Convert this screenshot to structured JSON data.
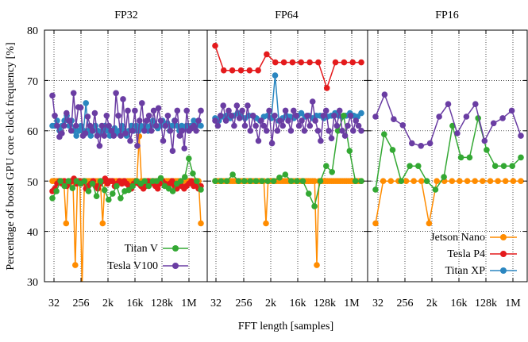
{
  "chart_data": {
    "type": "line",
    "ylabel": "Percentage of boost GPU core clock frequency [%]",
    "xlabel": "FFT length [samples]",
    "ylim": [
      30,
      80
    ],
    "y_ticks": [
      "30",
      "40",
      "50",
      "60",
      "70",
      "80"
    ],
    "x_ticks": [
      "32",
      "256",
      "2k",
      "16k",
      "128k",
      "1M"
    ],
    "grid": true,
    "colors": {
      "Jetson Nano": "#ff8c00",
      "Tesla P4": "#e41a1c",
      "Titan XP": "#2a86c0",
      "Titan V": "#33a833",
      "Tesla V100": "#6a3da3"
    },
    "panels": [
      {
        "title": "FP32",
        "legend": [
          "Titan V",
          "Tesla V100"
        ],
        "legend_position": "bottom-right",
        "series": [
          {
            "name": "Jetson Nano",
            "values": [
              50,
              50,
              50,
              50,
              50,
              50,
              41.6,
              50,
              50,
              50,
              33.3,
              50,
              50,
              29,
              50,
              50,
              50,
              50,
              50,
              50,
              50,
              50,
              41.6,
              50,
              50,
              50,
              50,
              50,
              50,
              50,
              50,
              50,
              50,
              50,
              50,
              50,
              50,
              50,
              58.9,
              50,
              50,
              50,
              50,
              50,
              50,
              50,
              50,
              50,
              50,
              50,
              50,
              50,
              50,
              50,
              50,
              50,
              50,
              50,
              50,
              50,
              50,
              50,
              50,
              50,
              50,
              41.6
            ]
          },
          {
            "name": "Tesla P4",
            "values": [
              48,
              48.5,
              49.5,
              50,
              49.5,
              50,
              49,
              49.5,
              50,
              50.5,
              49.5,
              50,
              49.5,
              50,
              48.5,
              49,
              49.5,
              50,
              49,
              48.5,
              49.5,
              50,
              50.5,
              49.5,
              50,
              50,
              49,
              49.5,
              50,
              49.5,
              50,
              49.5,
              49,
              48.5,
              49.5,
              50,
              49.5,
              49,
              48.5,
              49,
              50,
              49.5,
              50,
              49,
              48.5,
              49.5,
              50,
              49.5,
              49,
              49.5,
              50,
              49,
              48.5,
              49.5,
              49,
              48.5,
              49,
              49.5,
              50,
              49,
              49.5,
              48.5,
              49
            ]
          },
          {
            "name": "Titan XP",
            "values": [
              61,
              61,
              62,
              60,
              61,
              62,
              63,
              61,
              62,
              60,
              59,
              60,
              61,
              60,
              65.5,
              60,
              59,
              60,
              61,
              60,
              59.5,
              60,
              61,
              60,
              59,
              60,
              60.5,
              59.5,
              60,
              61,
              60,
              59,
              60,
              61,
              60,
              61,
              60,
              61,
              60.5,
              61,
              60,
              61,
              62,
              61,
              60.5,
              61,
              62,
              61,
              61.5,
              60,
              61,
              62,
              61,
              60,
              61,
              60.5,
              61,
              60,
              61,
              62,
              61,
              62,
              61
            ]
          },
          {
            "name": "Titan V",
            "values": [
              46.6,
              48,
              50,
              49,
              50,
              48.6,
              50,
              49.5,
              50,
              48,
              49.5,
              47,
              50,
              48.2,
              46.3,
              47.5,
              49,
              46.6,
              48,
              48.2,
              49,
              50,
              49.5,
              50,
              49,
              50,
              50,
              50.6,
              49,
              48.5,
              48,
              49.5,
              50,
              50.8,
              54.5,
              51.5,
              50,
              48.3
            ]
          },
          {
            "name": "Tesla V100",
            "values": [
              67,
              63,
              61,
              58.8,
              59.5,
              61,
              63.5,
              62,
              60,
              67.5,
              61,
              64.7,
              64.6,
              59,
              59.5,
              62.8,
              61,
              60,
              63.5,
              59,
              57,
              61,
              59,
              63,
              61,
              60,
              59,
              67.5,
              63,
              59,
              66.3,
              59.5,
              64,
              58,
              60,
              64,
              57,
              62,
              65.5,
              60,
              62,
              63,
              60,
              64,
              61,
              64.5,
              62,
              58,
              61,
              63,
              60,
              56,
              62,
              64,
              59,
              60,
              56.5,
              64,
              60,
              60.5,
              61,
              60,
              62,
              64
            ]
          }
        ]
      },
      {
        "title": "FP64",
        "legend": [],
        "legend_position": "none",
        "series": [
          {
            "name": "Jetson Nano",
            "values": [
              50,
              50,
              50,
              50,
              50,
              50,
              50,
              50,
              50,
              50,
              50,
              50,
              50,
              50,
              50,
              50,
              50,
              50,
              50,
              50,
              50,
              50,
              50,
              50,
              41.6,
              50,
              50,
              50,
              50,
              50,
              50,
              50,
              50,
              50,
              50,
              50,
              50,
              50,
              50,
              50,
              50,
              50,
              50,
              50,
              50,
              50,
              50,
              50,
              33.3,
              50,
              50,
              50,
              50,
              50,
              50,
              50,
              50,
              50,
              50,
              50,
              50,
              50,
              50,
              50,
              50,
              50,
              50,
              50,
              50,
              50
            ]
          },
          {
            "name": "Tesla P4",
            "values": [
              76.9,
              72,
              72,
              72,
              72,
              72,
              75.2,
              73.6,
              73.6,
              73.6,
              73.6,
              73.6,
              73.6,
              68.5,
              73.6,
              73.6,
              73.6,
              73.6
            ]
          },
          {
            "name": "Titan XP",
            "values": [
              62.5,
              62,
              62.8,
              63,
              62.5,
              63,
              63.5,
              62.8,
              62.5,
              63,
              63,
              62.5,
              62,
              62.8,
              63,
              62.5,
              71,
              62,
              62.5,
              63,
              62.8,
              62.5,
              63,
              63.5,
              62.8,
              63,
              62.5,
              63,
              63,
              62.5,
              62.8,
              63,
              63.5,
              63,
              62.8,
              63,
              63.5,
              63,
              62.8,
              63.5
            ]
          },
          {
            "name": "Titan V",
            "values": [
              50,
              50,
              50,
              51.3,
              50,
              50,
              50,
              50,
              50,
              50,
              50,
              50.7,
              51.3,
              50,
              50,
              50,
              47.5,
              45,
              50,
              53,
              51.8,
              60,
              63,
              56,
              50,
              50
            ]
          },
          {
            "name": "Tesla V100",
            "values": [
              62,
              61,
              63,
              65,
              62,
              64,
              63,
              61,
              65,
              62.5,
              64,
              61,
              65,
              60,
              63,
              61,
              58,
              62,
              61,
              60,
              64,
              57.5,
              63,
              60,
              62,
              61,
              64,
              62,
              60,
              64,
              63,
              61,
              62,
              60,
              63,
              61,
              65.8,
              62,
              60,
              58,
              63,
              64,
              60,
              58.5,
              63,
              61,
              64,
              60,
              59,
              61,
              63,
              60,
              62,
              61,
              60
            ]
          }
        ]
      },
      {
        "title": "FP16",
        "legend": [
          "Jetson Nano",
          "Tesla P4",
          "Titan XP"
        ],
        "legend_position": "bottom-right",
        "series": [
          {
            "name": "Jetson Nano",
            "values": [
              41.6,
              50,
              50,
              50,
              50,
              50,
              50,
              41.6,
              50,
              50,
              50,
              50,
              50,
              50,
              50,
              50,
              50,
              50,
              50,
              50
            ]
          },
          {
            "name": "Titan V",
            "values": [
              48.3,
              59.3,
              56.2,
              50,
              53,
              53,
              50,
              48.3,
              50.8,
              61,
              54.7,
              54.7,
              62.5,
              56.2,
              53,
              53,
              53,
              54.7
            ]
          },
          {
            "name": "Tesla V100",
            "values": [
              62.8,
              67.2,
              62.3,
              61.1,
              57.5,
              57,
              57.5,
              62.8,
              65.3,
              59.5,
              62.8,
              65.3,
              58,
              61.5,
              62.5,
              64,
              59
            ]
          }
        ]
      }
    ]
  }
}
